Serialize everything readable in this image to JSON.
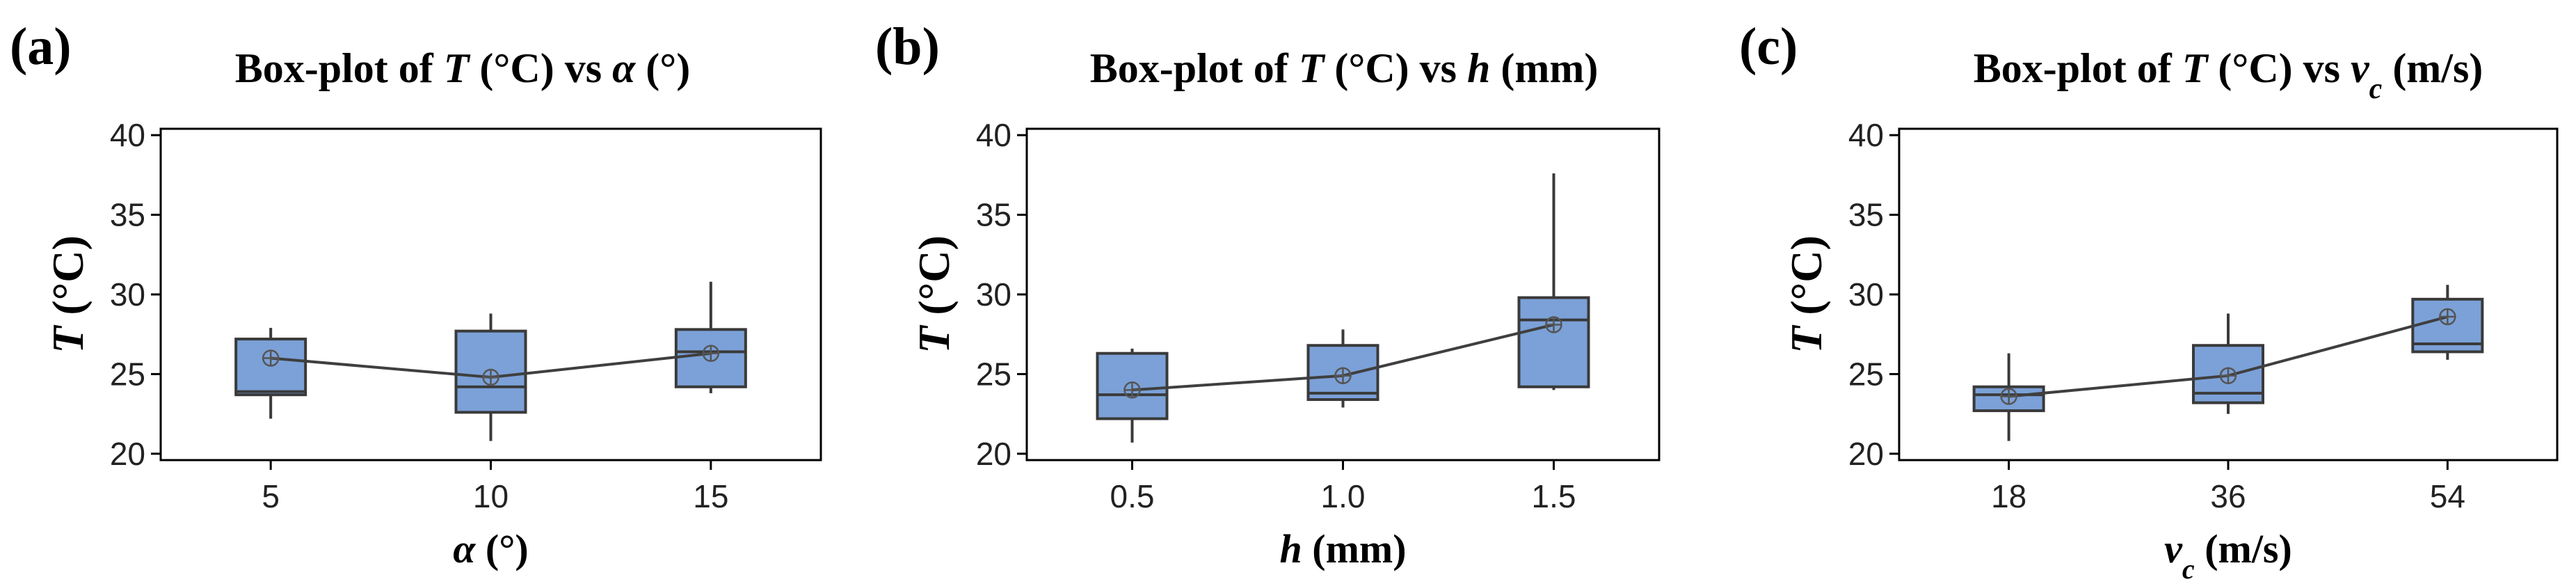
{
  "chart_data": [
    {
      "type": "box",
      "panel_label": "(a)",
      "title_prefix": "Box-plot of ",
      "title_var": "T",
      "title_mid": " (°C) vs ",
      "title_var2": "α",
      "title_sub": "",
      "title_unit": " (°)",
      "ylabel_var": "T",
      "ylabel_unit": " (°C)",
      "xlabel_var": "α",
      "xlabel_sub": "",
      "xlabel_unit": " (°)",
      "ylim": [
        19.6,
        40.4
      ],
      "yticks": [
        20,
        25,
        30,
        35,
        40
      ],
      "categories": [
        "5",
        "10",
        "15"
      ],
      "boxes": [
        {
          "whisker_low": 22.2,
          "q1": 23.7,
          "median": 23.9,
          "q3": 27.2,
          "whisker_high": 27.9,
          "mean": 26.0
        },
        {
          "whisker_low": 20.8,
          "q1": 22.6,
          "median": 24.2,
          "q3": 27.7,
          "whisker_high": 28.8,
          "mean": 24.8
        },
        {
          "whisker_low": 23.8,
          "q1": 24.2,
          "median": 26.4,
          "q3": 27.8,
          "whisker_high": 30.8,
          "mean": 26.3
        }
      ]
    },
    {
      "type": "box",
      "panel_label": "(b)",
      "title_prefix": "Box-plot of ",
      "title_var": "T",
      "title_mid": " (°C) vs ",
      "title_var2": "h",
      "title_sub": "",
      "title_unit": " (mm)",
      "ylabel_var": "T",
      "ylabel_unit": " (°C)",
      "xlabel_var": "h",
      "xlabel_sub": "",
      "xlabel_unit": " (mm)",
      "ylim": [
        19.6,
        40.4
      ],
      "yticks": [
        20,
        25,
        30,
        35,
        40
      ],
      "categories": [
        "0.5",
        "1.0",
        "1.5"
      ],
      "boxes": [
        {
          "whisker_low": 20.7,
          "q1": 22.2,
          "median": 23.7,
          "q3": 26.3,
          "whisker_high": 26.6,
          "mean": 24.0
        },
        {
          "whisker_low": 22.9,
          "q1": 23.4,
          "median": 23.8,
          "q3": 26.8,
          "whisker_high": 27.8,
          "mean": 24.9
        },
        {
          "whisker_low": 24.0,
          "q1": 24.2,
          "median": 28.4,
          "q3": 29.8,
          "whisker_high": 37.6,
          "mean": 28.1
        }
      ]
    },
    {
      "type": "box",
      "panel_label": "(c)",
      "title_prefix": "Box-plot of ",
      "title_var": "T",
      "title_mid": " (°C) vs ",
      "title_var2": "v",
      "title_sub": "c",
      "title_unit": " (m/s)",
      "ylabel_var": "T",
      "ylabel_unit": " (°C)",
      "xlabel_var": "v",
      "xlabel_sub": "c",
      "xlabel_unit": " (m/s)",
      "ylim": [
        19.6,
        40.4
      ],
      "yticks": [
        20,
        25,
        30,
        35,
        40
      ],
      "categories": [
        "18",
        "36",
        "54"
      ],
      "boxes": [
        {
          "whisker_low": 20.8,
          "q1": 22.7,
          "median": 23.7,
          "q3": 24.2,
          "whisker_high": 26.3,
          "mean": 23.6
        },
        {
          "whisker_low": 22.5,
          "q1": 23.2,
          "median": 23.8,
          "q3": 26.8,
          "whisker_high": 28.8,
          "mean": 24.9
        },
        {
          "whisker_low": 25.9,
          "q1": 26.4,
          "median": 26.9,
          "q3": 29.7,
          "whisker_high": 30.6,
          "mean": 28.6
        }
      ]
    }
  ]
}
